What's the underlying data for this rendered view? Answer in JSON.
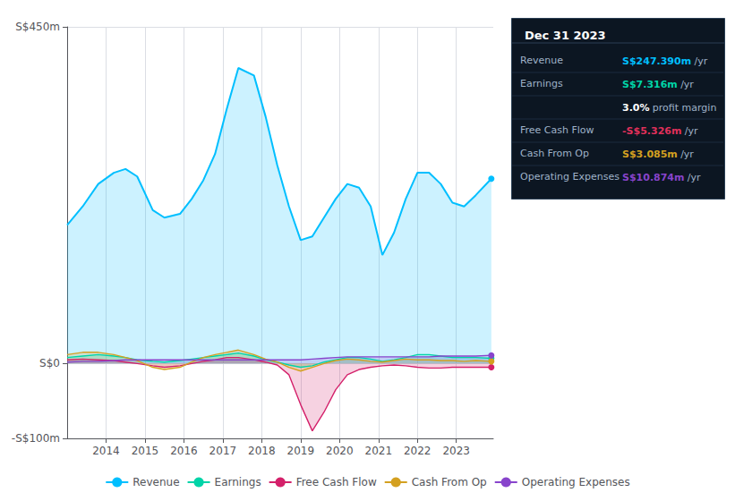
{
  "chart_data": {
    "type": "area",
    "title": "Dec 31 2023",
    "x": [
      2013.0,
      2013.4,
      2013.8,
      2014.2,
      2014.5,
      2014.8,
      2015.2,
      2015.5,
      2015.9,
      2016.2,
      2016.5,
      2016.8,
      2017.1,
      2017.4,
      2017.8,
      2018.1,
      2018.4,
      2018.7,
      2019.0,
      2019.3,
      2019.6,
      2019.9,
      2020.2,
      2020.5,
      2020.8,
      2021.1,
      2021.4,
      2021.7,
      2022.0,
      2022.3,
      2022.6,
      2022.9,
      2023.2,
      2023.5,
      2023.9
    ],
    "series": [
      {
        "name": "Revenue",
        "color": "#00bfff",
        "values": [
          185,
          210,
          240,
          255,
          260,
          250,
          205,
          195,
          200,
          220,
          245,
          280,
          340,
          395,
          385,
          330,
          265,
          210,
          165,
          170,
          195,
          220,
          240,
          235,
          210,
          145,
          175,
          220,
          255,
          255,
          240,
          215,
          210,
          225,
          247
        ]
      },
      {
        "name": "Earnings",
        "color": "#00d4a8",
        "values": [
          8,
          10,
          12,
          10,
          8,
          5,
          3,
          2,
          4,
          6,
          8,
          10,
          12,
          14,
          10,
          5,
          2,
          -2,
          -5,
          -3,
          2,
          5,
          8,
          8,
          6,
          3,
          5,
          8,
          12,
          12,
          10,
          8,
          8,
          8,
          7
        ]
      },
      {
        "name": "Free Cash Flow",
        "color": "#d4206a",
        "values": [
          5,
          6,
          5,
          4,
          2,
          0,
          -3,
          -5,
          -3,
          0,
          3,
          5,
          8,
          8,
          5,
          2,
          -2,
          -15,
          -55,
          -90,
          -65,
          -35,
          -15,
          -8,
          -5,
          -3,
          -2,
          -3,
          -5,
          -6,
          -6,
          -5,
          -5,
          -5,
          -5
        ]
      },
      {
        "name": "Cash From Op",
        "color": "#d4a020",
        "values": [
          12,
          15,
          15,
          12,
          8,
          4,
          -5,
          -8,
          -5,
          2,
          8,
          12,
          15,
          18,
          12,
          6,
          2,
          -5,
          -10,
          -5,
          0,
          4,
          6,
          5,
          3,
          2,
          4,
          6,
          5,
          5,
          4,
          4,
          3,
          4,
          3
        ]
      },
      {
        "name": "Operating Expenses",
        "color": "#8844cc",
        "values": [
          2,
          3,
          3,
          4,
          5,
          5,
          5,
          5,
          5,
          5,
          5,
          5,
          5,
          5,
          5,
          5,
          5,
          5,
          5,
          6,
          7,
          8,
          9,
          9,
          9,
          9,
          9,
          9,
          9,
          9,
          10,
          10,
          10,
          10,
          11
        ]
      }
    ],
    "xlim": [
      2013.0,
      2023.95
    ],
    "xticks": [
      2014,
      2015,
      2016,
      2017,
      2018,
      2019,
      2020,
      2021,
      2022,
      2023
    ],
    "ylim": [
      -100,
      450
    ],
    "yticks": [
      {
        "value": -100,
        "label": "-S$100m"
      },
      {
        "value": 0,
        "label": "S$0"
      },
      {
        "value": 450,
        "label": "S$450m"
      }
    ],
    "grid": true,
    "legend": "bottom",
    "annotations": [
      {
        "label": "Revenue",
        "text": "S$247.390m",
        "unit": "/yr",
        "color": "#00bfff"
      },
      {
        "label": "Earnings",
        "text": "S$7.316m",
        "unit": "/yr",
        "color": "#00d4a8"
      },
      {
        "text": "3.0%",
        "unit": "profit margin",
        "color": "#ffffff"
      },
      {
        "label": "Free Cash Flow",
        "text": "-S$5.326m",
        "unit": "/yr",
        "color": "#e0305a"
      },
      {
        "label": "Cash From Op",
        "text": "S$3.085m",
        "unit": "/yr",
        "color": "#d4a020"
      },
      {
        "label": "Operating Expenses",
        "text": "S$10.874m",
        "unit": "/yr",
        "color": "#8844cc"
      }
    ]
  }
}
